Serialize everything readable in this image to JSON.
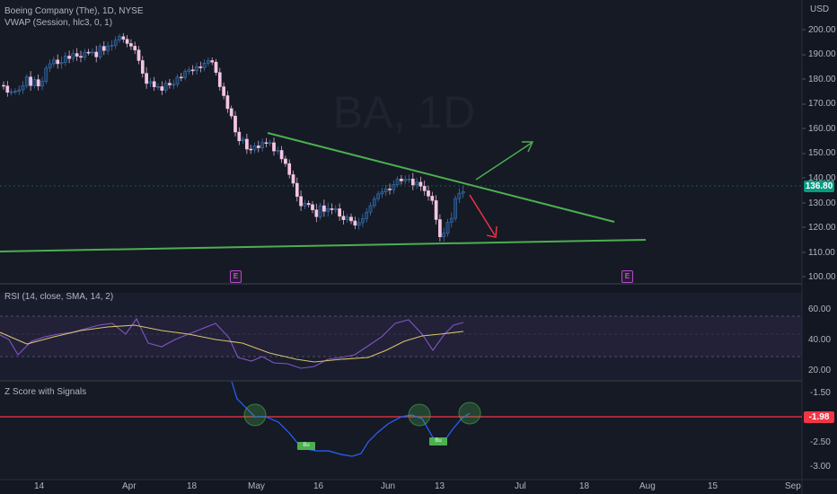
{
  "legend": {
    "title": "Boeing Company (The), 1D, NYSE",
    "vwap": "VWAP (Session, hlc3, 0, 1)",
    "rsi": "RSI (14, close, SMA, 14, 2)",
    "zscore": "Z Score with Signals"
  },
  "watermark": "BA, 1D",
  "currency": "USD",
  "price_axis": [
    "200.00",
    "190.00",
    "180.00",
    "170.00",
    "160.00",
    "150.00",
    "140.00",
    "130.00",
    "120.00",
    "110.00",
    "100.00"
  ],
  "last_price": "136.80",
  "rsi_axis": [
    "60.00",
    "40.00",
    "20.00"
  ],
  "z_axis": [
    "-1.50",
    "-2.50",
    "-3.00"
  ],
  "z_value": "-1.98",
  "time_axis": [
    "14",
    "Apr",
    "18",
    "May",
    "16",
    "Jun",
    "13",
    "Jul",
    "18",
    "Aug",
    "15",
    "Sep"
  ],
  "earnings_marker": "E",
  "signal_label": "Bu",
  "colors": {
    "background": "#131722",
    "candle_up": "#3e7fc4",
    "candle_down": "#f3c6e3",
    "trendline": "#4caf50",
    "arrow_down": "#f23645",
    "rsi_line": "#7e57c2",
    "rsi_ma": "#d8c36a",
    "zscore_line": "#2962ff",
    "threshold": "#f23645",
    "price_badge": "#089981"
  },
  "chart_data": {
    "type": "candlestick",
    "price_scale": {
      "min": 100,
      "max": 200
    },
    "rsi_scale": {
      "min": 20,
      "max": 60,
      "upper_band": 70,
      "lower_band": 30
    },
    "z_scale": {
      "min": -3.0,
      "max": -1.5,
      "threshold": -1.98
    }
  }
}
